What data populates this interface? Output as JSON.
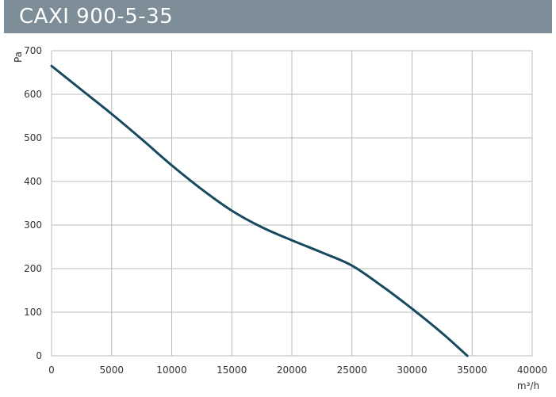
{
  "header": {
    "title": "CAXI 900-5-35"
  },
  "colors": {
    "title_bar": "#7d8e98",
    "curve": "#17495f",
    "grid": "#b8bcbe"
  },
  "chart_data": {
    "type": "line",
    "title": "CAXI 900-5-35",
    "xlabel": "m³/h",
    "ylabel": "Pa",
    "xlim": [
      0,
      40000
    ],
    "ylim": [
      0,
      700
    ],
    "grid": true,
    "x_ticks": [
      0,
      5000,
      10000,
      15000,
      20000,
      25000,
      30000,
      35000,
      40000
    ],
    "y_ticks": [
      0,
      100,
      200,
      300,
      400,
      500,
      600,
      700
    ],
    "series": [
      {
        "x": [
          0,
          2500,
          5000,
          7500,
          10000,
          12500,
          15000,
          17500,
          20000,
          22500,
          25000,
          27500,
          30000,
          32500,
          34600
        ],
        "y": [
          665,
          610,
          555,
          497,
          437,
          382,
          333,
          295,
          265,
          237,
          207,
          160,
          108,
          52,
          0
        ]
      }
    ]
  }
}
